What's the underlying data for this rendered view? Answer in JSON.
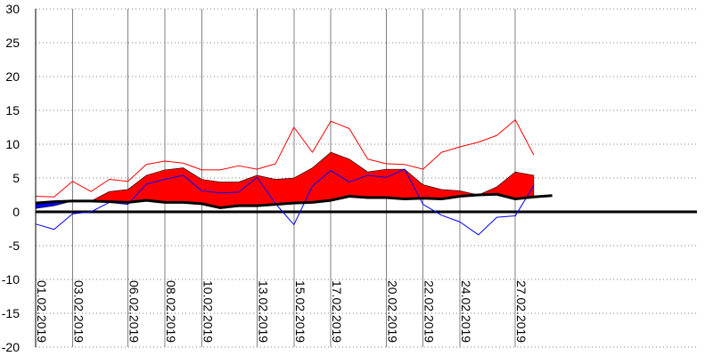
{
  "chart_data": {
    "type": "area",
    "title": "",
    "xlabel": "",
    "ylabel": "",
    "ylim": [
      -20,
      30
    ],
    "y_ticks": [
      30,
      25,
      20,
      15,
      10,
      5,
      0,
      -5,
      -10,
      -15,
      -20
    ],
    "grid": true,
    "legend": "none",
    "x_ticks": [
      {
        "day": 1,
        "label": "01.02.2019"
      },
      {
        "day": 3,
        "label": "03.02.2019"
      },
      {
        "day": 6,
        "label": "06.02.2019"
      },
      {
        "day": 8,
        "label": "08.02.2019"
      },
      {
        "day": 10,
        "label": "10.02.2019"
      },
      {
        "day": 13,
        "label": "13.02.2019"
      },
      {
        "day": 15,
        "label": "15.02.2019"
      },
      {
        "day": 17,
        "label": "17.02.2019"
      },
      {
        "day": 20,
        "label": "20.02.2019"
      },
      {
        "day": 22,
        "label": "22.02.2019"
      },
      {
        "day": 24,
        "label": "24.02.2019"
      },
      {
        "day": 27,
        "label": "27.02.2019"
      }
    ],
    "colors": {
      "upper_line": "#ff0000",
      "upper_fill": "#ff0000",
      "lower_line": "#0000ff",
      "lower_fill": "#0000ff",
      "mean_line": "#000000",
      "zero_line": "#000000",
      "grid": "#808080"
    },
    "series": [
      {
        "role": "upper_line",
        "x": [
          1,
          2,
          3,
          4,
          5,
          6,
          7,
          8,
          9,
          10,
          11,
          12,
          13,
          14,
          15,
          16,
          17,
          18,
          19,
          20,
          21,
          22,
          23,
          24,
          25,
          26,
          27,
          28
        ],
        "values": [
          2.3,
          2.2,
          4.5,
          3.0,
          4.8,
          4.5,
          7.0,
          7.5,
          7.2,
          6.2,
          6.2,
          6.8,
          6.3,
          7.1,
          12.5,
          8.8,
          13.4,
          12.3,
          7.8,
          7.1,
          7.0,
          6.3,
          8.8,
          9.6,
          10.3,
          11.3,
          13.6,
          8.4
        ]
      },
      {
        "role": "upper_fill",
        "x": [
          1,
          2,
          3,
          4,
          5,
          6,
          7,
          8,
          9,
          10,
          11,
          12,
          13,
          14,
          15,
          16,
          17,
          18,
          19,
          20,
          21,
          22,
          23,
          24,
          25,
          26,
          27,
          28
        ],
        "values": [
          1.3,
          1.4,
          1.6,
          1.6,
          3.0,
          3.3,
          5.4,
          6.2,
          6.5,
          4.8,
          4.4,
          4.4,
          5.4,
          4.8,
          5.0,
          6.5,
          8.8,
          7.8,
          5.9,
          6.3,
          6.3,
          4.0,
          3.3,
          3.1,
          2.5,
          3.7,
          5.9,
          5.4
        ]
      },
      {
        "role": "lower_line",
        "x": [
          1,
          2,
          3,
          4,
          5,
          6,
          7,
          8,
          9,
          10,
          11,
          12,
          13,
          14,
          15,
          16,
          17,
          18,
          19,
          20,
          21,
          22,
          23,
          24,
          25,
          26,
          27,
          28
        ],
        "values": [
          -1.8,
          -2.6,
          -0.3,
          0.0,
          1.4,
          1.1,
          4.1,
          4.8,
          5.4,
          3.1,
          2.8,
          2.9,
          5.1,
          1.2,
          -1.9,
          3.8,
          6.1,
          4.4,
          5.4,
          5.1,
          6.3,
          1.1,
          -0.5,
          -1.5,
          -3.4,
          -0.8,
          -0.6,
          3.9
        ]
      },
      {
        "role": "lower_fill",
        "x": [
          1,
          2,
          3
        ],
        "values": [
          0.5,
          0.9,
          1.6
        ]
      },
      {
        "role": "mean_line",
        "x": [
          1,
          2,
          3,
          4,
          5,
          6,
          7,
          8,
          9,
          10,
          11,
          12,
          13,
          14,
          15,
          16,
          17,
          18,
          19,
          20,
          21,
          22,
          23,
          24,
          25,
          26,
          27,
          28,
          29
        ],
        "values": [
          1.3,
          1.5,
          1.6,
          1.6,
          1.5,
          1.4,
          1.7,
          1.4,
          1.4,
          1.2,
          0.6,
          0.9,
          0.9,
          1.1,
          1.3,
          1.4,
          1.7,
          2.3,
          2.1,
          2.1,
          1.9,
          2.0,
          1.9,
          2.3,
          2.5,
          2.6,
          1.9,
          2.2,
          2.4
        ]
      }
    ]
  }
}
